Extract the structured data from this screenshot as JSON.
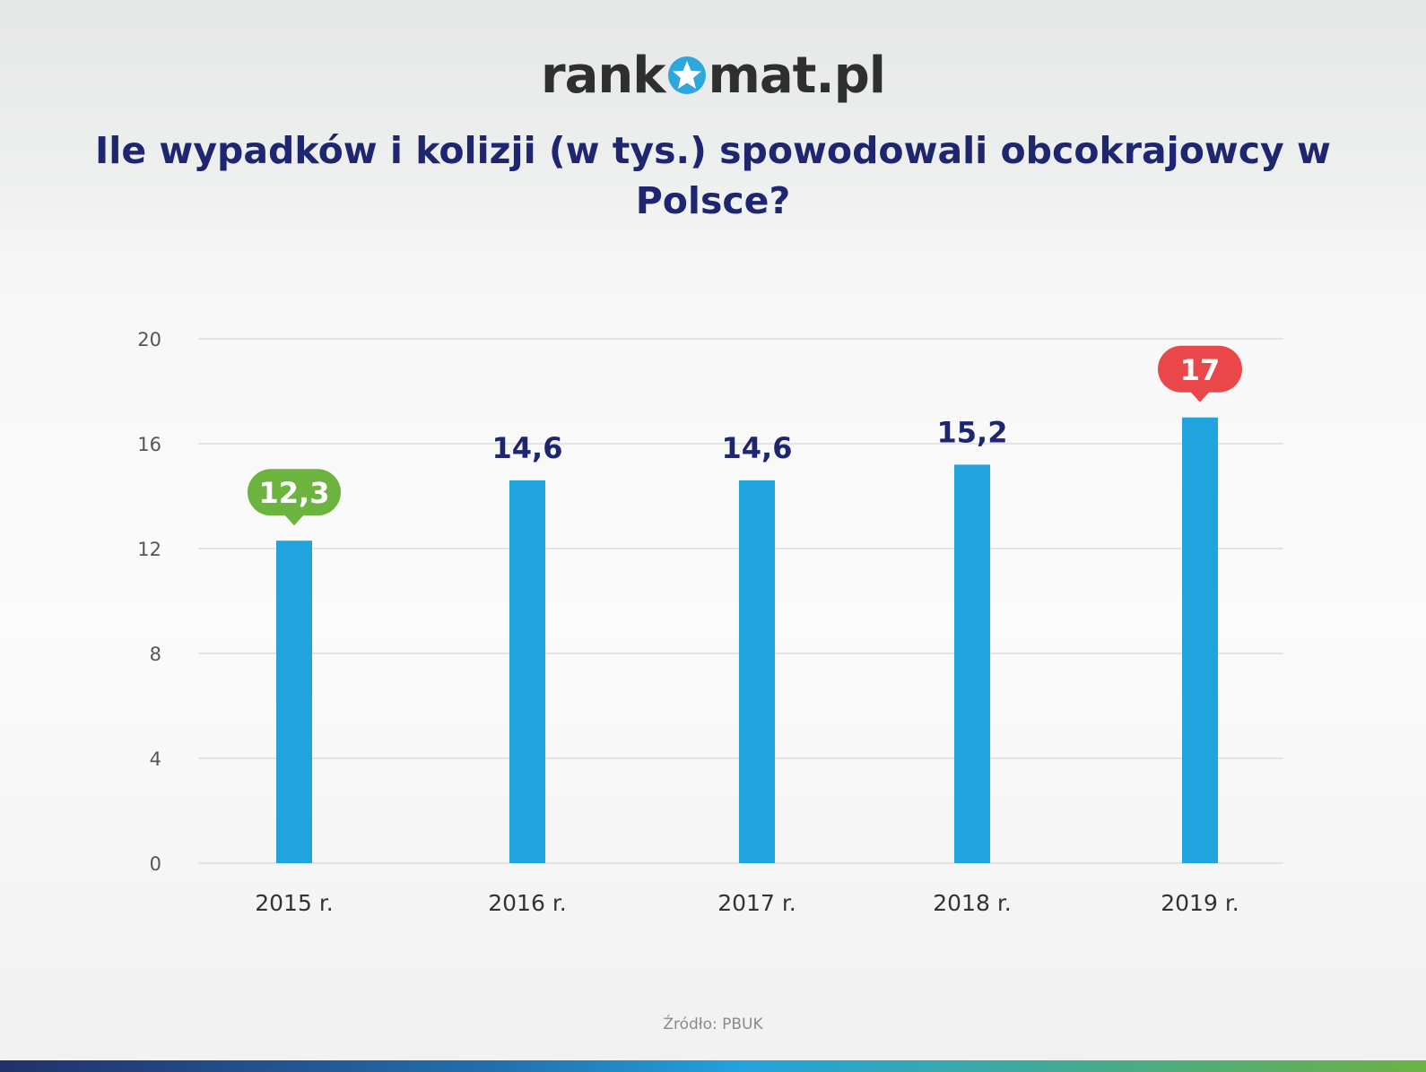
{
  "logo": {
    "text_left": "rank",
    "text_right": "mat.pl",
    "accent": "#2ea7dd"
  },
  "title": "Ile wypadków i kolizji (w tys.) spowodowali obcokrajowcy w Polsce?",
  "source": "Źródło: PBUK",
  "chart_data": {
    "type": "bar",
    "title": "Ile wypadków i kolizji (w tys.) spowodowali obcokrajowcy w Polsce?",
    "categories": [
      "2015 r.",
      "2016 r.",
      "2017 r.",
      "2018 r.",
      "2019 r."
    ],
    "values": [
      12.3,
      14.6,
      14.6,
      15.2,
      17
    ],
    "value_labels": [
      "12,3",
      "14,6",
      "14,6",
      "15,2",
      "17"
    ],
    "highlights": {
      "0": {
        "color": "#6cb33f",
        "meaning": "min"
      },
      "4": {
        "color": "#e9474a",
        "meaning": "max"
      }
    },
    "bar_color": "#21a3de",
    "label_color": "#1e2670",
    "ylim": [
      0,
      20
    ],
    "yticks": [
      0,
      4,
      8,
      12,
      16,
      20
    ],
    "grid": true,
    "xlabel": "",
    "ylabel": ""
  }
}
